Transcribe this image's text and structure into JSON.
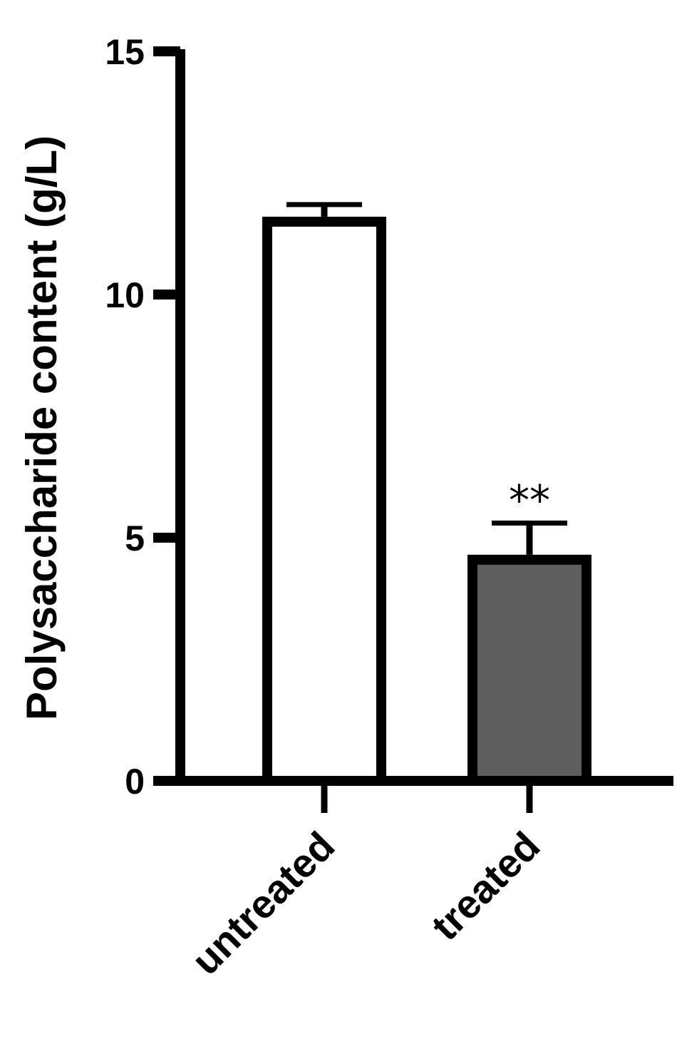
{
  "chart_data": {
    "type": "bar",
    "ylabel": "Polysaccharide content (g/L)",
    "ylim": [
      0,
      15
    ],
    "yticks": [
      0,
      5,
      10,
      15
    ],
    "categories": [
      "untreated",
      "treated"
    ],
    "values": [
      11.6,
      4.65
    ],
    "errors": [
      0.25,
      0.65
    ],
    "annotations": [
      "",
      "**"
    ],
    "bar_colors": [
      "#ffffff",
      "#5e5e5e"
    ],
    "edge_color": "#000000",
    "grid": false
  }
}
